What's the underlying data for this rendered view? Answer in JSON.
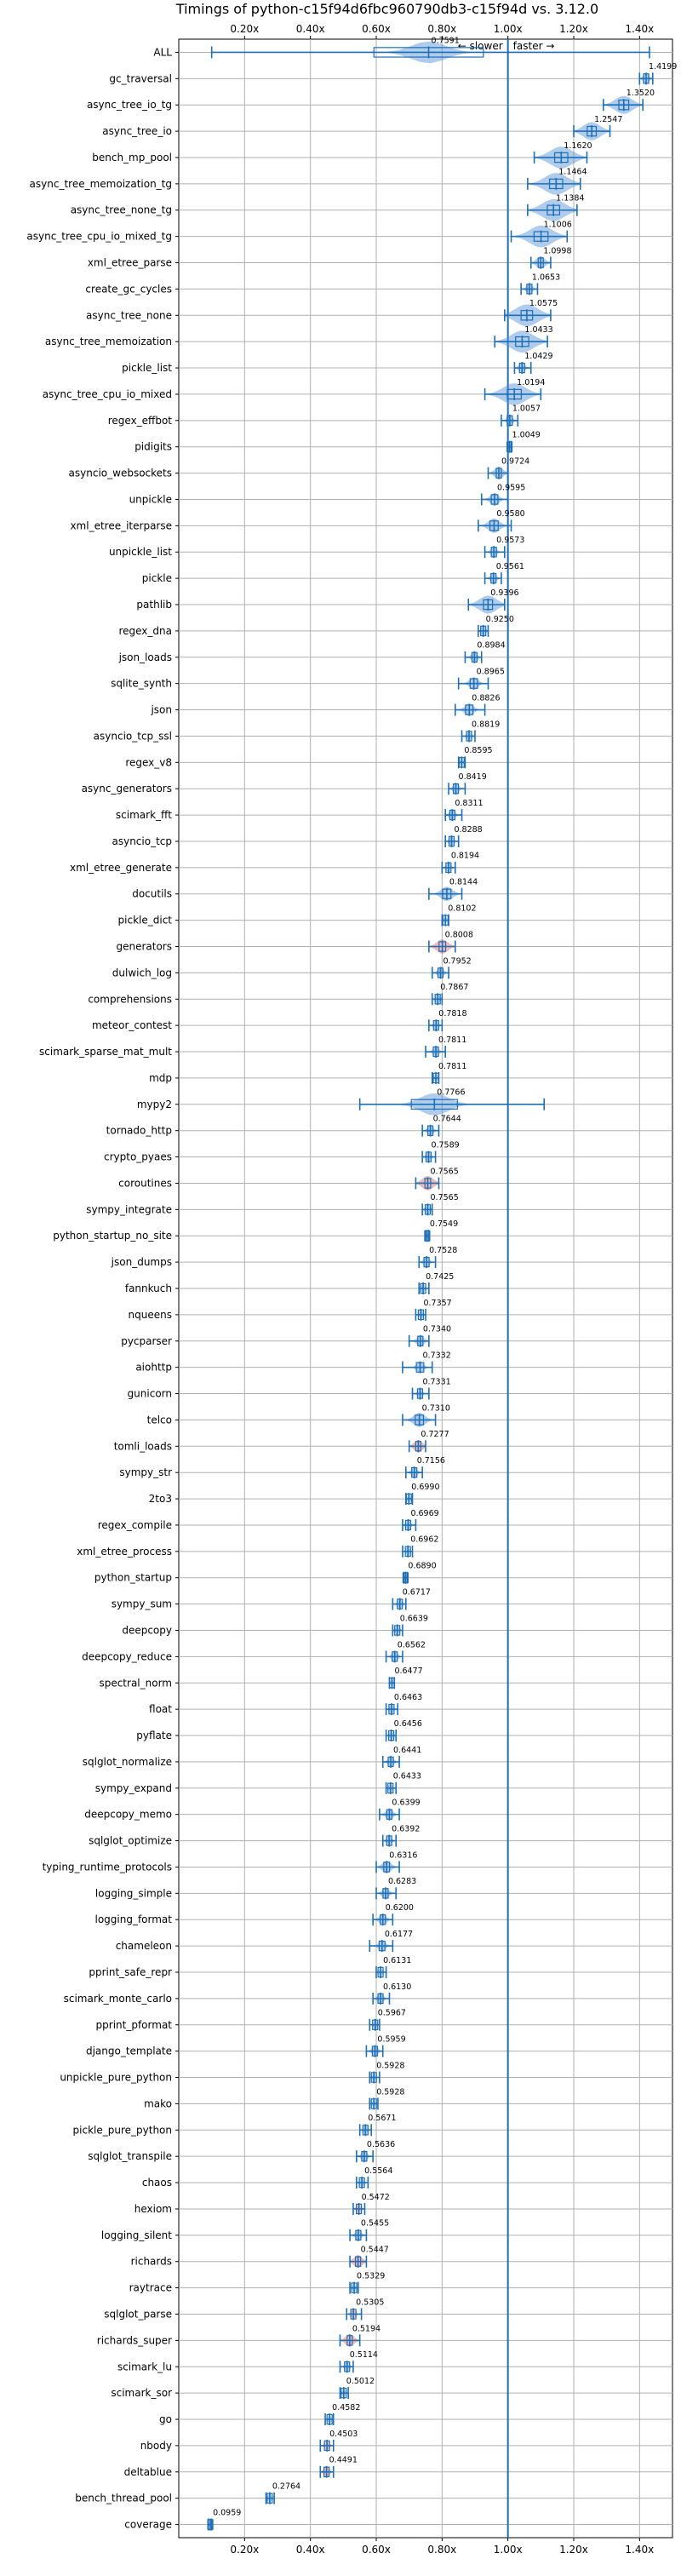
{
  "chart_data": {
    "type": "violin",
    "title": "Timings of python-c15f94d6fbc960790db3-c15f94d vs. 3.12.0",
    "xlabel": "",
    "ylabel": "",
    "xlim": [
      0.0,
      1.5
    ],
    "xticks": [
      0.2,
      0.4,
      0.6,
      0.8,
      1.0,
      1.2,
      1.4
    ],
    "xtick_labels": [
      "0.20x",
      "0.40x",
      "0.60x",
      "0.80x",
      "1.00x",
      "1.20x",
      "1.40x"
    ],
    "reference_line": 1.0,
    "direction_labels": {
      "slower": "← slower",
      "faster": "faster →"
    },
    "grid": true,
    "colors": {
      "violin": "#4d8fd6",
      "box": "#1f6fb5",
      "highlight": "#e06666",
      "refline": "#1f6fb5",
      "grid": "#b0b0b0"
    },
    "benchmarks": [
      {
        "name": "ALL",
        "value": 0.7591,
        "lo": 0.1,
        "hi": 1.43,
        "spread": 0.06
      },
      {
        "name": "gc_traversal",
        "value": 1.4199,
        "lo": 1.4,
        "hi": 1.44,
        "spread": 0.01
      },
      {
        "name": "async_tree_io_tg",
        "value": 1.352,
        "lo": 1.29,
        "hi": 1.41,
        "spread": 0.03
      },
      {
        "name": "async_tree_io",
        "value": 1.2547,
        "lo": 1.2,
        "hi": 1.31,
        "spread": 0.03
      },
      {
        "name": "bench_mp_pool",
        "value": 1.162,
        "lo": 1.08,
        "hi": 1.24,
        "spread": 0.04
      },
      {
        "name": "async_tree_memoization_tg",
        "value": 1.1464,
        "lo": 1.06,
        "hi": 1.22,
        "spread": 0.04
      },
      {
        "name": "async_tree_none_tg",
        "value": 1.1384,
        "lo": 1.06,
        "hi": 1.21,
        "spread": 0.04
      },
      {
        "name": "async_tree_cpu_io_mixed_tg",
        "value": 1.1006,
        "lo": 1.01,
        "hi": 1.18,
        "spread": 0.04
      },
      {
        "name": "xml_etree_parse",
        "value": 1.0998,
        "lo": 1.07,
        "hi": 1.13,
        "spread": 0.015
      },
      {
        "name": "create_gc_cycles",
        "value": 1.0653,
        "lo": 1.04,
        "hi": 1.09,
        "spread": 0.01
      },
      {
        "name": "async_tree_none",
        "value": 1.0575,
        "lo": 0.99,
        "hi": 1.13,
        "spread": 0.04
      },
      {
        "name": "async_tree_memoization",
        "value": 1.0433,
        "lo": 0.96,
        "hi": 1.12,
        "spread": 0.04
      },
      {
        "name": "pickle_list",
        "value": 1.0429,
        "lo": 1.02,
        "hi": 1.07,
        "spread": 0.01
      },
      {
        "name": "async_tree_cpu_io_mixed",
        "value": 1.0194,
        "lo": 0.93,
        "hi": 1.1,
        "spread": 0.04
      },
      {
        "name": "regex_effbot",
        "value": 1.0057,
        "lo": 0.98,
        "hi": 1.03,
        "spread": 0.01
      },
      {
        "name": "pidigits",
        "value": 1.0049,
        "lo": 1.0,
        "hi": 1.01,
        "spread": 0.003
      },
      {
        "name": "asyncio_websockets",
        "value": 0.9724,
        "lo": 0.94,
        "hi": 1.0,
        "spread": 0.015
      },
      {
        "name": "unpickle",
        "value": 0.9595,
        "lo": 0.92,
        "hi": 1.0,
        "spread": 0.015
      },
      {
        "name": "xml_etree_iterparse",
        "value": 0.958,
        "lo": 0.91,
        "hi": 1.01,
        "spread": 0.02
      },
      {
        "name": "unpickle_list",
        "value": 0.9573,
        "lo": 0.93,
        "hi": 0.99,
        "spread": 0.01
      },
      {
        "name": "pickle",
        "value": 0.9561,
        "lo": 0.93,
        "hi": 0.98,
        "spread": 0.01
      },
      {
        "name": "pathlib",
        "value": 0.9396,
        "lo": 0.88,
        "hi": 0.99,
        "spread": 0.03
      },
      {
        "name": "regex_dna",
        "value": 0.925,
        "lo": 0.91,
        "hi": 0.94,
        "spread": 0.008
      },
      {
        "name": "json_loads",
        "value": 0.8984,
        "lo": 0.87,
        "hi": 0.92,
        "spread": 0.01
      },
      {
        "name": "sqlite_synth",
        "value": 0.8965,
        "lo": 0.85,
        "hi": 0.94,
        "spread": 0.015
      },
      {
        "name": "json",
        "value": 0.8826,
        "lo": 0.84,
        "hi": 0.93,
        "spread": 0.015
      },
      {
        "name": "asyncio_tcp_ssl",
        "value": 0.8819,
        "lo": 0.86,
        "hi": 0.9,
        "spread": 0.008
      },
      {
        "name": "regex_v8",
        "value": 0.8595,
        "lo": 0.85,
        "hi": 0.87,
        "spread": 0.005
      },
      {
        "name": "async_generators",
        "value": 0.8419,
        "lo": 0.82,
        "hi": 0.87,
        "spread": 0.01
      },
      {
        "name": "scimark_fft",
        "value": 0.8311,
        "lo": 0.81,
        "hi": 0.86,
        "spread": 0.01
      },
      {
        "name": "asyncio_tcp",
        "value": 0.8288,
        "lo": 0.81,
        "hi": 0.85,
        "spread": 0.008
      },
      {
        "name": "xml_etree_generate",
        "value": 0.8194,
        "lo": 0.8,
        "hi": 0.84,
        "spread": 0.008
      },
      {
        "name": "docutils",
        "value": 0.8144,
        "lo": 0.76,
        "hi": 0.86,
        "spread": 0.02
      },
      {
        "name": "pickle_dict",
        "value": 0.8102,
        "lo": 0.8,
        "hi": 0.82,
        "spread": 0.004
      },
      {
        "name": "generators",
        "value": 0.8008,
        "lo": 0.76,
        "hi": 0.84,
        "spread": 0.02,
        "highlight": true
      },
      {
        "name": "dulwich_log",
        "value": 0.7952,
        "lo": 0.77,
        "hi": 0.82,
        "spread": 0.01
      },
      {
        "name": "comprehensions",
        "value": 0.7867,
        "lo": 0.77,
        "hi": 0.8,
        "spread": 0.008
      },
      {
        "name": "meteor_contest",
        "value": 0.7818,
        "lo": 0.76,
        "hi": 0.8,
        "spread": 0.008
      },
      {
        "name": "scimark_sparse_mat_mult",
        "value": 0.7811,
        "lo": 0.75,
        "hi": 0.81,
        "spread": 0.01
      },
      {
        "name": "mdp",
        "value": 0.7811,
        "lo": 0.77,
        "hi": 0.79,
        "spread": 0.005
      },
      {
        "name": "mypy2",
        "value": 0.7766,
        "lo": 0.55,
        "hi": 1.11,
        "spread": 0.05
      },
      {
        "name": "tornado_http",
        "value": 0.7644,
        "lo": 0.74,
        "hi": 0.79,
        "spread": 0.01
      },
      {
        "name": "crypto_pyaes",
        "value": 0.7589,
        "lo": 0.74,
        "hi": 0.78,
        "spread": 0.008
      },
      {
        "name": "coroutines",
        "value": 0.7565,
        "lo": 0.72,
        "hi": 0.79,
        "spread": 0.02,
        "highlight": true
      },
      {
        "name": "sympy_integrate",
        "value": 0.7565,
        "lo": 0.74,
        "hi": 0.77,
        "spread": 0.008
      },
      {
        "name": "python_startup_no_site",
        "value": 0.7549,
        "lo": 0.75,
        "hi": 0.76,
        "spread": 0.003
      },
      {
        "name": "json_dumps",
        "value": 0.7528,
        "lo": 0.73,
        "hi": 0.78,
        "spread": 0.01
      },
      {
        "name": "fannkuch",
        "value": 0.7425,
        "lo": 0.73,
        "hi": 0.76,
        "spread": 0.006
      },
      {
        "name": "nqueens",
        "value": 0.7357,
        "lo": 0.72,
        "hi": 0.75,
        "spread": 0.006
      },
      {
        "name": "pycparser",
        "value": 0.734,
        "lo": 0.7,
        "hi": 0.76,
        "spread": 0.012
      },
      {
        "name": "aiohttp",
        "value": 0.7332,
        "lo": 0.68,
        "hi": 0.77,
        "spread": 0.012
      },
      {
        "name": "gunicorn",
        "value": 0.7331,
        "lo": 0.71,
        "hi": 0.76,
        "spread": 0.008
      },
      {
        "name": "telco",
        "value": 0.731,
        "lo": 0.68,
        "hi": 0.78,
        "spread": 0.02
      },
      {
        "name": "tomli_loads",
        "value": 0.7277,
        "lo": 0.7,
        "hi": 0.75,
        "spread": 0.015,
        "highlight": true
      },
      {
        "name": "sympy_str",
        "value": 0.7156,
        "lo": 0.69,
        "hi": 0.74,
        "spread": 0.01
      },
      {
        "name": "2to3",
        "value": 0.699,
        "lo": 0.69,
        "hi": 0.71,
        "spread": 0.005
      },
      {
        "name": "regex_compile",
        "value": 0.6969,
        "lo": 0.68,
        "hi": 0.72,
        "spread": 0.008
      },
      {
        "name": "xml_etree_process",
        "value": 0.6962,
        "lo": 0.68,
        "hi": 0.71,
        "spread": 0.006
      },
      {
        "name": "python_startup",
        "value": 0.689,
        "lo": 0.684,
        "hi": 0.694,
        "spread": 0.003
      },
      {
        "name": "sympy_sum",
        "value": 0.6717,
        "lo": 0.65,
        "hi": 0.69,
        "spread": 0.008
      },
      {
        "name": "deepcopy",
        "value": 0.6639,
        "lo": 0.65,
        "hi": 0.68,
        "spread": 0.007
      },
      {
        "name": "deepcopy_reduce",
        "value": 0.6562,
        "lo": 0.63,
        "hi": 0.68,
        "spread": 0.01
      },
      {
        "name": "spectral_norm",
        "value": 0.6477,
        "lo": 0.64,
        "hi": 0.655,
        "spread": 0.004
      },
      {
        "name": "float",
        "value": 0.6463,
        "lo": 0.63,
        "hi": 0.665,
        "spread": 0.007
      },
      {
        "name": "pyflate",
        "value": 0.6456,
        "lo": 0.63,
        "hi": 0.66,
        "spread": 0.006
      },
      {
        "name": "sqlglot_normalize",
        "value": 0.6441,
        "lo": 0.62,
        "hi": 0.67,
        "spread": 0.01
      },
      {
        "name": "sympy_expand",
        "value": 0.6433,
        "lo": 0.63,
        "hi": 0.66,
        "spread": 0.006
      },
      {
        "name": "deepcopy_memo",
        "value": 0.6399,
        "lo": 0.61,
        "hi": 0.67,
        "spread": 0.012
      },
      {
        "name": "sqlglot_optimize",
        "value": 0.6392,
        "lo": 0.62,
        "hi": 0.66,
        "spread": 0.008
      },
      {
        "name": "typing_runtime_protocols",
        "value": 0.6316,
        "lo": 0.6,
        "hi": 0.67,
        "spread": 0.015
      },
      {
        "name": "logging_simple",
        "value": 0.6283,
        "lo": 0.6,
        "hi": 0.66,
        "spread": 0.012
      },
      {
        "name": "logging_format",
        "value": 0.62,
        "lo": 0.59,
        "hi": 0.65,
        "spread": 0.012
      },
      {
        "name": "chameleon",
        "value": 0.6177,
        "lo": 0.58,
        "hi": 0.65,
        "spread": 0.012
      },
      {
        "name": "pprint_safe_repr",
        "value": 0.6131,
        "lo": 0.6,
        "hi": 0.63,
        "spread": 0.006
      },
      {
        "name": "scimark_monte_carlo",
        "value": 0.613,
        "lo": 0.59,
        "hi": 0.64,
        "spread": 0.01
      },
      {
        "name": "pprint_pformat",
        "value": 0.5967,
        "lo": 0.58,
        "hi": 0.61,
        "spread": 0.006
      },
      {
        "name": "django_template",
        "value": 0.5959,
        "lo": 0.57,
        "hi": 0.62,
        "spread": 0.01
      },
      {
        "name": "unpickle_pure_python",
        "value": 0.5928,
        "lo": 0.58,
        "hi": 0.61,
        "spread": 0.006
      },
      {
        "name": "mako",
        "value": 0.5928,
        "lo": 0.58,
        "hi": 0.605,
        "spread": 0.005
      },
      {
        "name": "pickle_pure_python",
        "value": 0.5671,
        "lo": 0.55,
        "hi": 0.585,
        "spread": 0.007
      },
      {
        "name": "sqlglot_transpile",
        "value": 0.5636,
        "lo": 0.54,
        "hi": 0.59,
        "spread": 0.01
      },
      {
        "name": "chaos",
        "value": 0.5564,
        "lo": 0.54,
        "hi": 0.575,
        "spread": 0.007
      },
      {
        "name": "hexiom",
        "value": 0.5472,
        "lo": 0.53,
        "hi": 0.565,
        "spread": 0.008,
        "highlight": true
      },
      {
        "name": "logging_silent",
        "value": 0.5455,
        "lo": 0.52,
        "hi": 0.57,
        "spread": 0.01
      },
      {
        "name": "richards",
        "value": 0.5447,
        "lo": 0.52,
        "hi": 0.57,
        "spread": 0.015,
        "highlight": true
      },
      {
        "name": "raytrace",
        "value": 0.5329,
        "lo": 0.52,
        "hi": 0.545,
        "spread": 0.005
      },
      {
        "name": "sqlglot_parse",
        "value": 0.5305,
        "lo": 0.51,
        "hi": 0.555,
        "spread": 0.008,
        "highlight": true
      },
      {
        "name": "richards_super",
        "value": 0.5194,
        "lo": 0.49,
        "hi": 0.55,
        "spread": 0.015,
        "highlight": true
      },
      {
        "name": "scimark_lu",
        "value": 0.5114,
        "lo": 0.49,
        "hi": 0.53,
        "spread": 0.008
      },
      {
        "name": "scimark_sor",
        "value": 0.5012,
        "lo": 0.49,
        "hi": 0.515,
        "spread": 0.005
      },
      {
        "name": "go",
        "value": 0.4582,
        "lo": 0.445,
        "hi": 0.47,
        "spread": 0.005
      },
      {
        "name": "nbody",
        "value": 0.4503,
        "lo": 0.43,
        "hi": 0.47,
        "spread": 0.008,
        "highlight": true
      },
      {
        "name": "deltablue",
        "value": 0.4491,
        "lo": 0.43,
        "hi": 0.47,
        "spread": 0.01,
        "highlight": true
      },
      {
        "name": "bench_thread_pool",
        "value": 0.2764,
        "lo": 0.265,
        "hi": 0.29,
        "spread": 0.006
      },
      {
        "name": "coverage",
        "value": 0.0959,
        "lo": 0.09,
        "hi": 0.1,
        "spread": 0.003
      }
    ]
  }
}
